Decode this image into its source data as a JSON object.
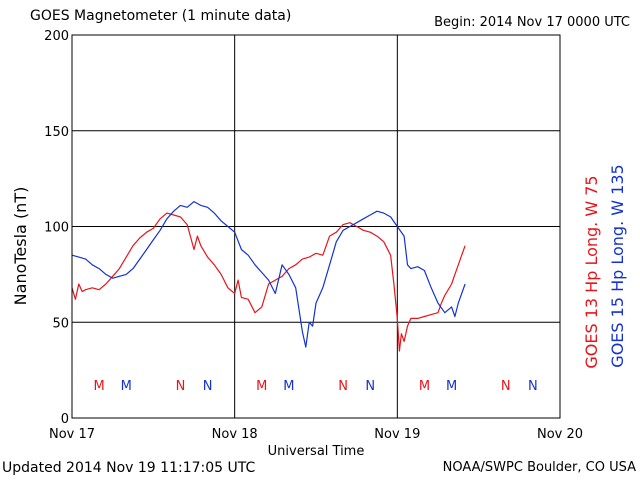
{
  "header": {
    "title": "GOES Magnetometer (1 minute data)",
    "begin": "Begin:  2014 Nov 17 0000 UTC"
  },
  "footer": {
    "updated": "Updated 2014 Nov 19 11:17:05 UTC",
    "credit": "NOAA/SWPC Boulder, CO USA"
  },
  "colors": {
    "goes13": "#e8141a",
    "goes15": "#1432d2",
    "axis": "#000000"
  },
  "chart_data": {
    "type": "line",
    "title": "GOES Magnetometer (1 minute data)",
    "xlabel": "Universal Time",
    "ylabel": "NanoTesla (nT)",
    "ylim": [
      0,
      200
    ],
    "xlim": [
      0,
      72
    ],
    "x_unit": "hours since 2014 Nov 17 0000 UTC",
    "yticks": [
      0,
      50,
      100,
      150,
      200
    ],
    "xticks": [
      {
        "x": 0,
        "label": "Nov 17"
      },
      {
        "x": 24,
        "label": "Nov 18"
      },
      {
        "x": 48,
        "label": "Nov 19"
      },
      {
        "x": 72,
        "label": "Nov 20"
      }
    ],
    "grid": true,
    "legend_placement": "right, vertical",
    "series": [
      {
        "name": "GOES 13 Hp  Long. W 75",
        "color": "#e8141a",
        "points": [
          [
            0,
            68
          ],
          [
            0.5,
            62
          ],
          [
            1,
            70
          ],
          [
            1.5,
            66
          ],
          [
            2,
            67
          ],
          [
            3,
            68
          ],
          [
            4,
            67
          ],
          [
            5,
            70
          ],
          [
            6,
            74
          ],
          [
            7,
            78
          ],
          [
            8,
            84
          ],
          [
            9,
            90
          ],
          [
            10,
            94
          ],
          [
            11,
            97
          ],
          [
            12,
            99
          ],
          [
            13,
            104
          ],
          [
            14,
            107
          ],
          [
            15,
            106
          ],
          [
            16,
            105
          ],
          [
            17,
            101
          ],
          [
            18,
            88
          ],
          [
            18.5,
            95
          ],
          [
            19,
            90
          ],
          [
            20,
            84
          ],
          [
            21,
            80
          ],
          [
            22,
            75
          ],
          [
            23,
            68
          ],
          [
            24,
            65
          ],
          [
            24.5,
            72
          ],
          [
            25,
            63
          ],
          [
            26,
            62
          ],
          [
            27,
            55
          ],
          [
            28,
            58
          ],
          [
            29,
            70
          ],
          [
            30,
            72
          ],
          [
            31,
            74
          ],
          [
            32,
            78
          ],
          [
            33,
            80
          ],
          [
            34,
            83
          ],
          [
            35,
            84
          ],
          [
            36,
            86
          ],
          [
            37,
            85
          ],
          [
            38,
            95
          ],
          [
            39,
            97
          ],
          [
            40,
            101
          ],
          [
            41,
            102
          ],
          [
            42,
            100
          ],
          [
            43,
            98
          ],
          [
            44,
            97
          ],
          [
            45,
            95
          ],
          [
            46,
            92
          ],
          [
            47,
            85
          ],
          [
            47.5,
            70
          ],
          [
            48,
            52
          ],
          [
            48.3,
            35
          ],
          [
            48.6,
            44
          ],
          [
            49,
            40
          ],
          [
            49.5,
            48
          ],
          [
            50,
            52
          ],
          [
            51,
            52
          ],
          [
            52,
            53
          ],
          [
            53,
            54
          ],
          [
            54,
            55
          ],
          [
            54.5,
            60
          ],
          [
            55,
            64
          ],
          [
            56,
            70
          ],
          [
            56.5,
            75
          ],
          [
            57,
            80
          ],
          [
            57.5,
            85
          ],
          [
            58,
            90
          ]
        ]
      },
      {
        "name": "GOES 15 Hp  Long. W 135",
        "color": "#1432d2",
        "points": [
          [
            0,
            85
          ],
          [
            1,
            84
          ],
          [
            2,
            83
          ],
          [
            3,
            80
          ],
          [
            4,
            78
          ],
          [
            5,
            75
          ],
          [
            6,
            73
          ],
          [
            7,
            74
          ],
          [
            8,
            75
          ],
          [
            9,
            78
          ],
          [
            10,
            83
          ],
          [
            11,
            88
          ],
          [
            12,
            93
          ],
          [
            13,
            98
          ],
          [
            14,
            104
          ],
          [
            15,
            108
          ],
          [
            16,
            111
          ],
          [
            17,
            110
          ],
          [
            18,
            113
          ],
          [
            19,
            111
          ],
          [
            20,
            110
          ],
          [
            21,
            107
          ],
          [
            22,
            103
          ],
          [
            23,
            100
          ],
          [
            24,
            97
          ],
          [
            25,
            88
          ],
          [
            26,
            85
          ],
          [
            27,
            80
          ],
          [
            28,
            76
          ],
          [
            29,
            72
          ],
          [
            30,
            65
          ],
          [
            31,
            80
          ],
          [
            32,
            75
          ],
          [
            33,
            68
          ],
          [
            34,
            45
          ],
          [
            34.5,
            37
          ],
          [
            35,
            50
          ],
          [
            35.5,
            48
          ],
          [
            36,
            60
          ],
          [
            37,
            68
          ],
          [
            38,
            80
          ],
          [
            39,
            92
          ],
          [
            40,
            98
          ],
          [
            41,
            100
          ],
          [
            42,
            102
          ],
          [
            43,
            104
          ],
          [
            44,
            106
          ],
          [
            45,
            108
          ],
          [
            46,
            107
          ],
          [
            47,
            105
          ],
          [
            48,
            100
          ],
          [
            49,
            95
          ],
          [
            49.5,
            80
          ],
          [
            50,
            78
          ],
          [
            51,
            79
          ],
          [
            52,
            77
          ],
          [
            53,
            68
          ],
          [
            54,
            60
          ],
          [
            55,
            55
          ],
          [
            56,
            58
          ],
          [
            56.5,
            53
          ],
          [
            57,
            60
          ],
          [
            58,
            70
          ]
        ]
      }
    ],
    "annotations": [
      {
        "x": 4,
        "label": "M",
        "series": "GOES 13"
      },
      {
        "x": 8,
        "label": "M",
        "series": "GOES 15"
      },
      {
        "x": 16,
        "label": "N",
        "series": "GOES 13"
      },
      {
        "x": 20,
        "label": "N",
        "series": "GOES 15"
      },
      {
        "x": 28,
        "label": "M",
        "series": "GOES 13"
      },
      {
        "x": 32,
        "label": "M",
        "series": "GOES 15"
      },
      {
        "x": 40,
        "label": "N",
        "series": "GOES 13"
      },
      {
        "x": 44,
        "label": "N",
        "series": "GOES 15"
      },
      {
        "x": 52,
        "label": "M",
        "series": "GOES 13"
      },
      {
        "x": 56,
        "label": "M",
        "series": "GOES 15"
      },
      {
        "x": 64,
        "label": "N",
        "series": "GOES 13"
      },
      {
        "x": 68,
        "label": "N",
        "series": "GOES 15"
      }
    ]
  }
}
